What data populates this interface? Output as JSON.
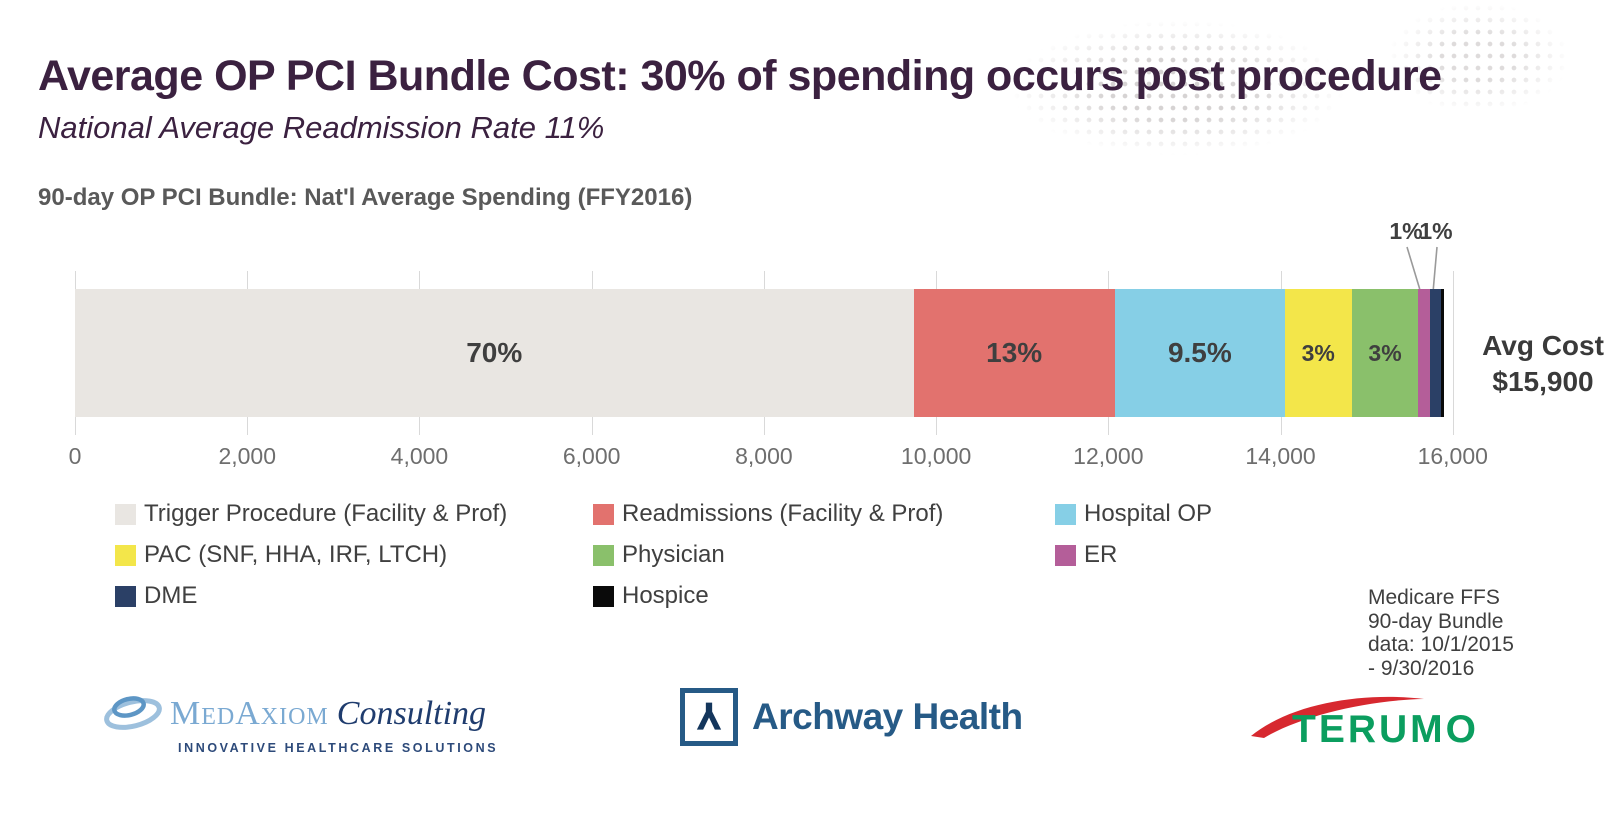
{
  "slide": {
    "title": "Average OP PCI Bundle Cost: 30% of spending occurs post procedure",
    "subtitle": "National Average Readmission Rate 11%"
  },
  "chart_data": {
    "type": "bar",
    "orientation": "horizontal",
    "stacked": true,
    "title": "90-day OP PCI Bundle: Nat'l Average Spending (FFY2016)",
    "axis": {
      "min": 0,
      "max": 16200,
      "tick_step": 2000,
      "tick_labels": [
        "0",
        "2,000",
        "4,000",
        "6,000",
        "8,000",
        "10,000",
        "12,000",
        "14,000",
        "16,000"
      ],
      "grid": true
    },
    "total": {
      "label": "Avg Cost",
      "value": "$15,900",
      "numeric": 15900
    },
    "segments": [
      {
        "name": "Trigger Procedure (Facility & Prof)",
        "label": "70%",
        "percent": 70,
        "approx_dollars": 11130,
        "color": "#e9e6e2"
      },
      {
        "name": "Readmissions (Facility & Prof)",
        "label": "13%",
        "percent": 13,
        "approx_dollars": 2067,
        "color": "#e2726e"
      },
      {
        "name": "Hospital OP",
        "label": "9.5%",
        "percent": 9.5,
        "approx_dollars": 1511,
        "color": "#86cfe6"
      },
      {
        "name": "PAC (SNF, HHA, IRF, LTCH)",
        "label": "3%",
        "percent": 3,
        "approx_dollars": 477,
        "color": "#f3e64a"
      },
      {
        "name": "Physician",
        "label": "3%",
        "percent": 3,
        "approx_dollars": 477,
        "color": "#8ac06b"
      },
      {
        "name": "ER",
        "label": "1%",
        "percent": 1,
        "approx_dollars": 159,
        "color": "#b45e99",
        "callout": true
      },
      {
        "name": "DME",
        "label": "1%",
        "percent": 1,
        "approx_dollars": 159,
        "color": "#2b4066",
        "callout": true
      },
      {
        "name": "Hospice",
        "label": "",
        "percent": 0.3,
        "approx_dollars": 48,
        "color": "#0a0a0a"
      }
    ],
    "legend_position": "below"
  },
  "note": {
    "lines": [
      "Medicare FFS",
      "90-day Bundle",
      "data: 10/1/2015",
      "- 9/30/2016"
    ]
  },
  "logos": {
    "medaxiom": {
      "wordmark": "MedAxiom",
      "suffix": "Consulting",
      "tagline": "INNOVATIVE HEALTHCARE SOLUTIONS"
    },
    "archway": {
      "text": "Archway Health"
    },
    "terumo": {
      "text": "TERUMO"
    }
  },
  "colors": {
    "title_text": "#3b2140",
    "chart_title_text": "#595959",
    "segment_label_text": "#3f3f3f",
    "gridline": "#d9d9d9",
    "axis_text": "#6e6e6e",
    "legend_text": "#404040",
    "note_text": "#3f3f3f",
    "medaxiom_blue": "#7aa9d2",
    "medaxiom_navy": "#1f3c6e",
    "archway_navy": "#265a86",
    "terumo_green": "#0b9e5f",
    "terumo_red": "#d7282f"
  }
}
